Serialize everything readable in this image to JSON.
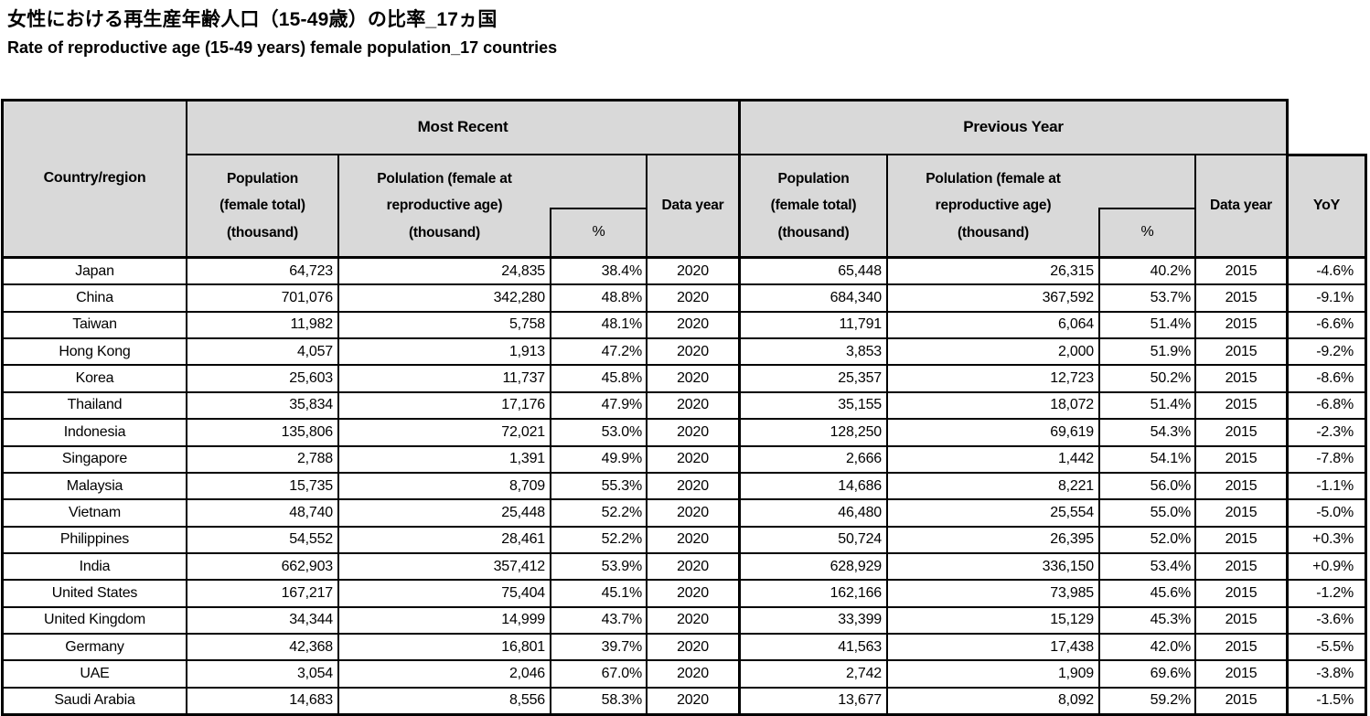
{
  "titles": {
    "japanese": "女性における再生産年齢人口（15-49歳）の比率_17ヵ国",
    "english": "Rate of reproductive age (15-49 years) female population_17 countries"
  },
  "colors": {
    "header_background": "#d9d9d9",
    "border": "#000000",
    "text": "#000000"
  },
  "table": {
    "header": {
      "country": "Country/region",
      "group_recent": "Most Recent",
      "group_previous": "Previous Year",
      "pop_total": "Population\n(female total)\n(thousand)",
      "pop_repro": "Polulation (female at\nreproductive age)\n(thousand)",
      "percent": "%",
      "data_year": "Data year",
      "yoy": "YoY"
    },
    "rows": [
      {
        "country": "Japan",
        "recent": [
          "64,723",
          "24,835",
          "38.4%",
          "2020"
        ],
        "previous": [
          "65,448",
          "26,315",
          "40.2%",
          "2015"
        ],
        "yoy": "-4.6%"
      },
      {
        "country": "China",
        "recent": [
          "701,076",
          "342,280",
          "48.8%",
          "2020"
        ],
        "previous": [
          "684,340",
          "367,592",
          "53.7%",
          "2015"
        ],
        "yoy": "-9.1%"
      },
      {
        "country": "Taiwan",
        "recent": [
          "11,982",
          "5,758",
          "48.1%",
          "2020"
        ],
        "previous": [
          "11,791",
          "6,064",
          "51.4%",
          "2015"
        ],
        "yoy": "-6.6%"
      },
      {
        "country": "Hong Kong",
        "recent": [
          "4,057",
          "1,913",
          "47.2%",
          "2020"
        ],
        "previous": [
          "3,853",
          "2,000",
          "51.9%",
          "2015"
        ],
        "yoy": "-9.2%"
      },
      {
        "country": "Korea",
        "recent": [
          "25,603",
          "11,737",
          "45.8%",
          "2020"
        ],
        "previous": [
          "25,357",
          "12,723",
          "50.2%",
          "2015"
        ],
        "yoy": "-8.6%"
      },
      {
        "country": "Thailand",
        "recent": [
          "35,834",
          "17,176",
          "47.9%",
          "2020"
        ],
        "previous": [
          "35,155",
          "18,072",
          "51.4%",
          "2015"
        ],
        "yoy": "-6.8%"
      },
      {
        "country": "Indonesia",
        "recent": [
          "135,806",
          "72,021",
          "53.0%",
          "2020"
        ],
        "previous": [
          "128,250",
          "69,619",
          "54.3%",
          "2015"
        ],
        "yoy": "-2.3%"
      },
      {
        "country": "Singapore",
        "recent": [
          "2,788",
          "1,391",
          "49.9%",
          "2020"
        ],
        "previous": [
          "2,666",
          "1,442",
          "54.1%",
          "2015"
        ],
        "yoy": "-7.8%"
      },
      {
        "country": "Malaysia",
        "recent": [
          "15,735",
          "8,709",
          "55.3%",
          "2020"
        ],
        "previous": [
          "14,686",
          "8,221",
          "56.0%",
          "2015"
        ],
        "yoy": "-1.1%"
      },
      {
        "country": "Vietnam",
        "recent": [
          "48,740",
          "25,448",
          "52.2%",
          "2020"
        ],
        "previous": [
          "46,480",
          "25,554",
          "55.0%",
          "2015"
        ],
        "yoy": "-5.0%"
      },
      {
        "country": "Philippines",
        "recent": [
          "54,552",
          "28,461",
          "52.2%",
          "2020"
        ],
        "previous": [
          "50,724",
          "26,395",
          "52.0%",
          "2015"
        ],
        "yoy": "+0.3%"
      },
      {
        "country": "India",
        "recent": [
          "662,903",
          "357,412",
          "53.9%",
          "2020"
        ],
        "previous": [
          "628,929",
          "336,150",
          "53.4%",
          "2015"
        ],
        "yoy": "+0.9%"
      },
      {
        "country": "United States",
        "recent": [
          "167,217",
          "75,404",
          "45.1%",
          "2020"
        ],
        "previous": [
          "162,166",
          "73,985",
          "45.6%",
          "2015"
        ],
        "yoy": "-1.2%"
      },
      {
        "country": "United Kingdom",
        "recent": [
          "34,344",
          "14,999",
          "43.7%",
          "2020"
        ],
        "previous": [
          "33,399",
          "15,129",
          "45.3%",
          "2015"
        ],
        "yoy": "-3.6%"
      },
      {
        "country": "Germany",
        "recent": [
          "42,368",
          "16,801",
          "39.7%",
          "2020"
        ],
        "previous": [
          "41,563",
          "17,438",
          "42.0%",
          "2015"
        ],
        "yoy": "-5.5%"
      },
      {
        "country": "UAE",
        "recent": [
          "3,054",
          "2,046",
          "67.0%",
          "2020"
        ],
        "previous": [
          "2,742",
          "1,909",
          "69.6%",
          "2015"
        ],
        "yoy": "-3.8%"
      },
      {
        "country": "Saudi Arabia",
        "recent": [
          "14,683",
          "8,556",
          "58.3%",
          "2020"
        ],
        "previous": [
          "13,677",
          "8,092",
          "59.2%",
          "2015"
        ],
        "yoy": "-1.5%"
      }
    ]
  }
}
